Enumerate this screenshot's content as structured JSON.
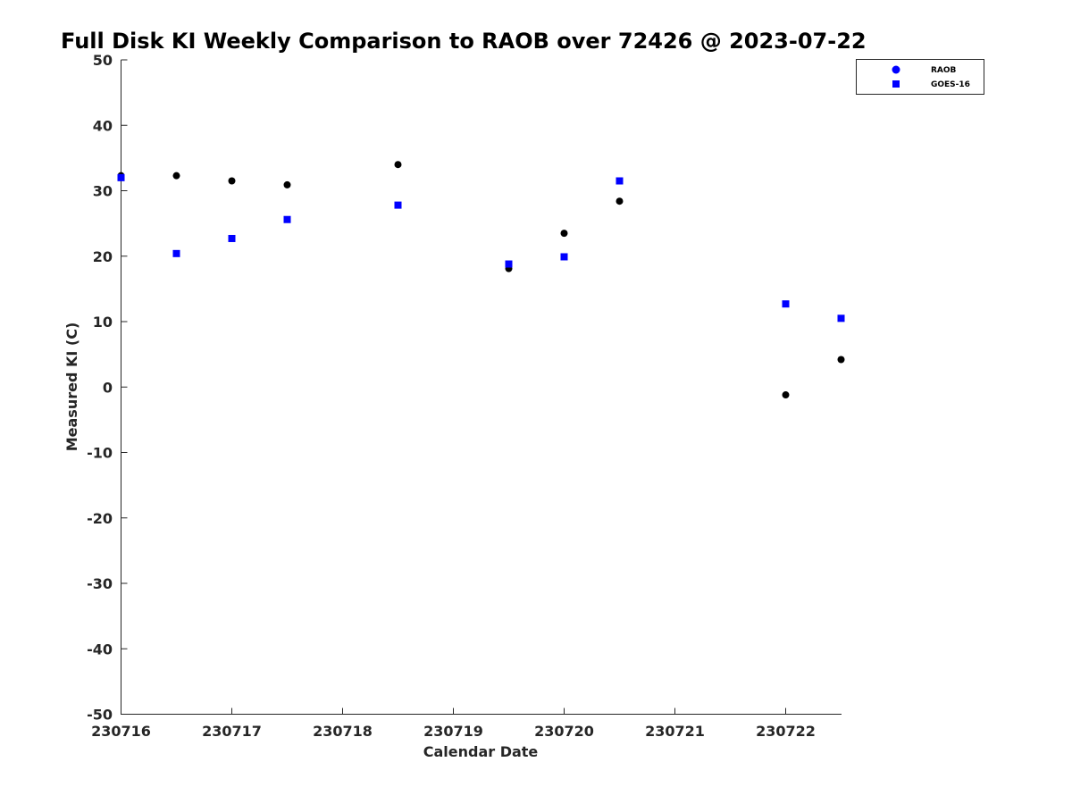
{
  "chart_data": {
    "type": "scatter",
    "title": "Full Disk KI Weekly Comparison to RAOB over 72426 @ 2023-07-22",
    "xlabel": "Calendar Date",
    "ylabel": "Measured KI (C)",
    "x_ticks": [
      "230716",
      "230717",
      "230718",
      "230719",
      "230720",
      "230721",
      "230722"
    ],
    "xlim": [
      "2023-07-16T00:00",
      "2023-07-22T12:00"
    ],
    "ylim": [
      -50,
      50
    ],
    "y_ticks": [
      -50,
      -40,
      -30,
      -20,
      -10,
      0,
      10,
      20,
      30,
      40,
      50
    ],
    "grid": false,
    "legend_position": "top-right",
    "series": [
      {
        "name": "RAOB",
        "marker": "circle",
        "legend_color": "#0000ff",
        "point_color": "#000000",
        "points": [
          {
            "x": "2023-07-16T00:00",
            "y": 32.3
          },
          {
            "x": "2023-07-16T12:00",
            "y": 32.3
          },
          {
            "x": "2023-07-17T00:00",
            "y": 31.5
          },
          {
            "x": "2023-07-17T12:00",
            "y": 30.9
          },
          {
            "x": "2023-07-18T12:00",
            "y": 34.0
          },
          {
            "x": "2023-07-19T12:00",
            "y": 18.1
          },
          {
            "x": "2023-07-20T00:00",
            "y": 23.5
          },
          {
            "x": "2023-07-20T12:00",
            "y": 28.4
          },
          {
            "x": "2023-07-22T00:00",
            "y": -1.2
          },
          {
            "x": "2023-07-22T12:00",
            "y": 4.2
          }
        ]
      },
      {
        "name": "GOES-16",
        "marker": "square",
        "legend_color": "#0000ff",
        "point_color": "#0000ff",
        "points": [
          {
            "x": "2023-07-16T00:00",
            "y": 32.0
          },
          {
            "x": "2023-07-16T12:00",
            "y": 20.4
          },
          {
            "x": "2023-07-17T00:00",
            "y": 22.7
          },
          {
            "x": "2023-07-17T12:00",
            "y": 25.6
          },
          {
            "x": "2023-07-18T12:00",
            "y": 27.8
          },
          {
            "x": "2023-07-19T12:00",
            "y": 18.8
          },
          {
            "x": "2023-07-20T00:00",
            "y": 19.9
          },
          {
            "x": "2023-07-20T12:00",
            "y": 31.5
          },
          {
            "x": "2023-07-22T00:00",
            "y": 12.7
          },
          {
            "x": "2023-07-22T12:00",
            "y": 10.5
          }
        ]
      }
    ]
  }
}
